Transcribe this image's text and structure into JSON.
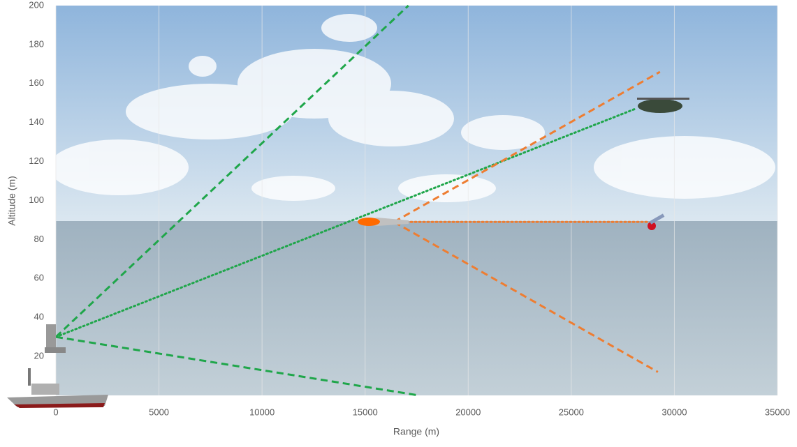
{
  "chart_data": {
    "type": "line",
    "x_label": "Range (m)",
    "y_label": "Altitude (m)",
    "xlim": [
      0,
      35000
    ],
    "xticks": [
      0,
      5000,
      10000,
      15000,
      20000,
      25000,
      30000,
      35000
    ],
    "ylim": [
      0,
      200
    ],
    "yticks": [
      20,
      40,
      60,
      80,
      100,
      120,
      140,
      160,
      180,
      200
    ],
    "grid": true,
    "series": [
      {
        "color": "#1fa64a",
        "style": "dashed",
        "x": [
          0,
          17100
        ],
        "values": [
          30,
          200
        ]
      },
      {
        "color": "#1fa64a",
        "style": "dashed",
        "x": [
          0,
          17600
        ],
        "values": [
          30,
          0
        ]
      },
      {
        "color": "#1fa64a",
        "style": "dotted",
        "x": [
          0,
          28100
        ],
        "values": [
          30,
          147
        ]
      },
      {
        "color": "#ee7d31",
        "style": "dashed",
        "x": [
          16400,
          29300
        ],
        "values": [
          89,
          166
        ]
      },
      {
        "color": "#ee7d31",
        "style": "dashed",
        "x": [
          16400,
          29200
        ],
        "values": [
          89,
          12
        ]
      },
      {
        "color": "#ee7d31",
        "style": "dotted",
        "x": [
          16400,
          28800
        ],
        "values": [
          89,
          89
        ]
      }
    ]
  }
}
